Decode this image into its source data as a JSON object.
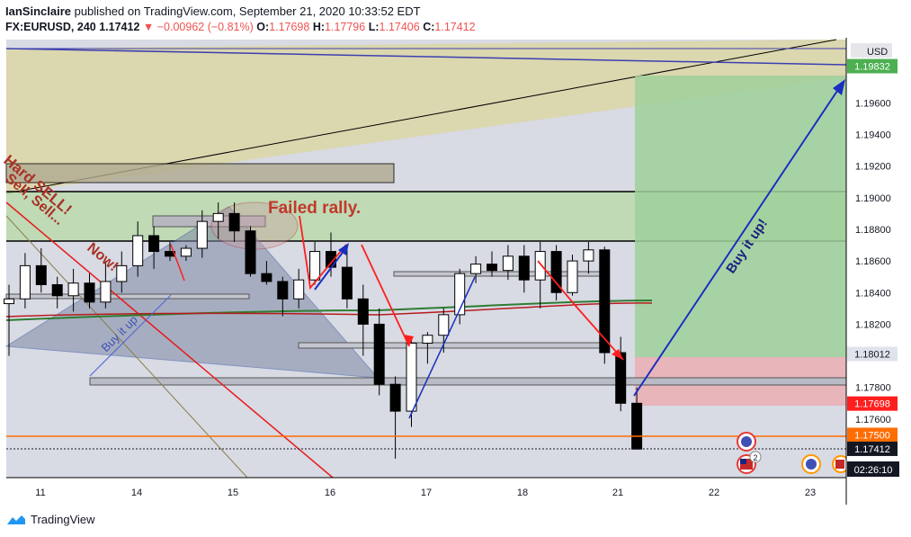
{
  "header": {
    "author": "IanSinclaire",
    "published_text": " published on TradingView.com, September 21, 2020 10:33:52 EDT",
    "symbol": "FX:EURUSD, 240",
    "last": "1.17412",
    "change": "−0.00962 (−0.81%)",
    "o_label": "O:",
    "o": "1.17698",
    "h_label": "H:",
    "h": "1.17796",
    "l_label": "L:",
    "l": "1.17406",
    "c_label": "C:",
    "c": "1.17412"
  },
  "chart_data": {
    "type": "candlestick",
    "ylim": [
      1.174,
      1.2
    ],
    "price_ticks": [
      "1.19600",
      "1.19400",
      "1.19200",
      "1.19000",
      "1.18800",
      "1.18600",
      "1.18400",
      "1.18200",
      "1.17800",
      "1.17600"
    ],
    "price_tick_values": [
      1.196,
      1.194,
      1.192,
      1.19,
      1.188,
      1.186,
      1.184,
      1.182,
      1.178,
      1.176
    ],
    "x_ticks": [
      "11",
      "14",
      "15",
      "16",
      "17",
      "18",
      "21",
      "22",
      "23"
    ],
    "currency": "USD",
    "price_badges": [
      {
        "label": "1.19832",
        "value": 1.19832,
        "bg": "#4caf50",
        "fg": "#ffffff"
      },
      {
        "label": "1.18012",
        "value": 1.18012,
        "bg": "#e0e3eb",
        "fg": "#131722"
      },
      {
        "label": "1.17698",
        "value": 1.17698,
        "bg": "#ff1e1e",
        "fg": "#ffffff"
      },
      {
        "label": "1.17500",
        "value": 1.175,
        "bg": "#ff6d00",
        "fg": "#ffffff"
      },
      {
        "label": "1.17412",
        "value": 1.17412,
        "bg": "#131722",
        "fg": "#ffffff"
      }
    ],
    "countdown": "02:26:10",
    "candles": [
      {
        "o": 1.1833,
        "h": 1.1845,
        "l": 1.18,
        "c": 1.1836
      },
      {
        "o": 1.1836,
        "h": 1.1865,
        "l": 1.183,
        "c": 1.1857
      },
      {
        "o": 1.1857,
        "h": 1.1868,
        "l": 1.184,
        "c": 1.1845
      },
      {
        "o": 1.1845,
        "h": 1.185,
        "l": 1.183,
        "c": 1.1838
      },
      {
        "o": 1.1838,
        "h": 1.1855,
        "l": 1.1828,
        "c": 1.1846
      },
      {
        "o": 1.1846,
        "h": 1.1852,
        "l": 1.183,
        "c": 1.1834
      },
      {
        "o": 1.1834,
        "h": 1.186,
        "l": 1.183,
        "c": 1.1847
      },
      {
        "o": 1.1847,
        "h": 1.1866,
        "l": 1.184,
        "c": 1.1857
      },
      {
        "o": 1.1857,
        "h": 1.1885,
        "l": 1.185,
        "c": 1.1876
      },
      {
        "o": 1.1876,
        "h": 1.1882,
        "l": 1.1855,
        "c": 1.1866
      },
      {
        "o": 1.1866,
        "h": 1.1872,
        "l": 1.186,
        "c": 1.1863
      },
      {
        "o": 1.1863,
        "h": 1.187,
        "l": 1.186,
        "c": 1.1868
      },
      {
        "o": 1.1868,
        "h": 1.1892,
        "l": 1.1862,
        "c": 1.1885
      },
      {
        "o": 1.1885,
        "h": 1.1897,
        "l": 1.1874,
        "c": 1.189
      },
      {
        "o": 1.189,
        "h": 1.1897,
        "l": 1.1872,
        "c": 1.1879
      },
      {
        "o": 1.1879,
        "h": 1.1882,
        "l": 1.185,
        "c": 1.1852
      },
      {
        "o": 1.1852,
        "h": 1.186,
        "l": 1.1845,
        "c": 1.1847
      },
      {
        "o": 1.1847,
        "h": 1.185,
        "l": 1.1825,
        "c": 1.1836
      },
      {
        "o": 1.1836,
        "h": 1.1855,
        "l": 1.183,
        "c": 1.1848
      },
      {
        "o": 1.1848,
        "h": 1.1872,
        "l": 1.1845,
        "c": 1.1866
      },
      {
        "o": 1.1866,
        "h": 1.1878,
        "l": 1.185,
        "c": 1.1856
      },
      {
        "o": 1.1856,
        "h": 1.1868,
        "l": 1.183,
        "c": 1.1836
      },
      {
        "o": 1.1836,
        "h": 1.1845,
        "l": 1.18,
        "c": 1.182
      },
      {
        "o": 1.182,
        "h": 1.183,
        "l": 1.1775,
        "c": 1.1782
      },
      {
        "o": 1.1782,
        "h": 1.1787,
        "l": 1.1735,
        "c": 1.1765
      },
      {
        "o": 1.1765,
        "h": 1.1812,
        "l": 1.1755,
        "c": 1.1808
      },
      {
        "o": 1.1808,
        "h": 1.1815,
        "l": 1.1795,
        "c": 1.1813
      },
      {
        "o": 1.1813,
        "h": 1.183,
        "l": 1.1802,
        "c": 1.1826
      },
      {
        "o": 1.1826,
        "h": 1.1855,
        "l": 1.182,
        "c": 1.1852
      },
      {
        "o": 1.1852,
        "h": 1.1863,
        "l": 1.1846,
        "c": 1.1858
      },
      {
        "o": 1.1858,
        "h": 1.1866,
        "l": 1.185,
        "c": 1.1854
      },
      {
        "o": 1.1854,
        "h": 1.187,
        "l": 1.1848,
        "c": 1.1863
      },
      {
        "o": 1.1863,
        "h": 1.187,
        "l": 1.184,
        "c": 1.1848
      },
      {
        "o": 1.1848,
        "h": 1.1872,
        "l": 1.183,
        "c": 1.1866
      },
      {
        "o": 1.1866,
        "h": 1.187,
        "l": 1.1835,
        "c": 1.184
      },
      {
        "o": 1.184,
        "h": 1.1864,
        "l": 1.1838,
        "c": 1.186
      },
      {
        "o": 1.186,
        "h": 1.1872,
        "l": 1.1852,
        "c": 1.1867
      },
      {
        "o": 1.1867,
        "h": 1.1869,
        "l": 1.1795,
        "c": 1.1802
      },
      {
        "o": 1.1802,
        "h": 1.1812,
        "l": 1.1765,
        "c": 1.177
      },
      {
        "o": 1.177,
        "h": 1.178,
        "l": 1.1741,
        "c": 1.1741
      }
    ]
  },
  "annotations": {
    "failed_rally": "Failed rally.",
    "hard_sell": "Hard SELL!",
    "sell_sell": "Sell, Sell...",
    "now": "Now!",
    "buy_it_up_left": "Buy it up",
    "buy_it_up_right": "Buy it up!"
  },
  "badge_count": "2",
  "colors": {
    "bg": "#ffffff",
    "chart_bg": "#d8dae4",
    "down": "#000000",
    "up": "#ffffff",
    "accent_red": "#ff1e1e",
    "accent_blue": "#1a2fbf",
    "target_green": "#a8d5a2",
    "stop_red": "#e8a8ae",
    "olive": "#d9d1a0"
  },
  "footer": {
    "brand": "TradingView"
  }
}
